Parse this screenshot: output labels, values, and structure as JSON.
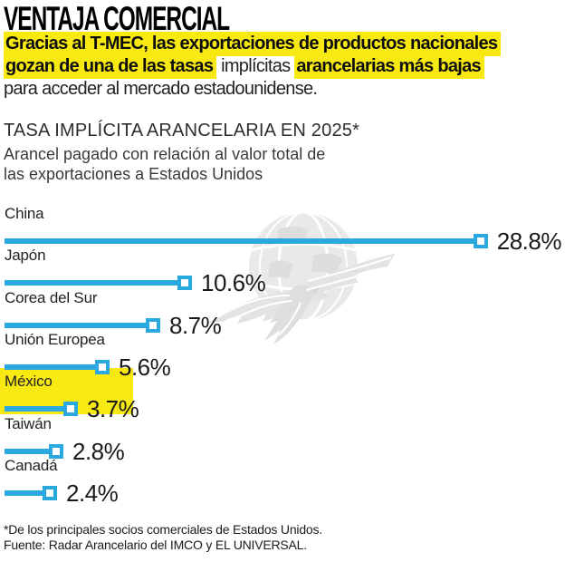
{
  "header": {
    "title": "VENTAJA COMERCIAL",
    "intro": {
      "seg1": "Gracias al T-MEC, las exportaciones de productos nacionales",
      "seg2": "gozan de una de las tasas",
      "seg3": " implícitas ",
      "seg4": "arancelarias más bajas",
      "seg5": "para acceder al mercado estadounidense."
    }
  },
  "chart": {
    "title": "TASA IMPLÍCITA ARANCELARIA EN 2025*",
    "subtitle_line1": "Arancel pagado con relación al valor total de",
    "subtitle_line2": "las exportaciones a Estados Unidos"
  },
  "chart_data": {
    "type": "bar",
    "orientation": "horizontal",
    "title": "TASA IMPLÍCITA ARANCELARIA EN 2025*",
    "subtitle": "Arancel pagado con relación al valor total de las exportaciones a Estados Unidos",
    "categories": [
      "China",
      "Japón",
      "Corea del Sur",
      "Unión Europea",
      "México",
      "Taiwán",
      "Canadá"
    ],
    "values": [
      28.8,
      10.6,
      8.7,
      5.6,
      3.7,
      2.8,
      2.4
    ],
    "value_labels": [
      "28.8%",
      "10.6%",
      "8.7%",
      "5.6%",
      "3.7%",
      "2.8%",
      "2.4%"
    ],
    "unit": "%",
    "xlim": [
      0,
      28.8
    ],
    "highlighted_category": "México",
    "grid": false,
    "legend": false
  },
  "watermark": {
    "name": "el-universal-eagle-globe"
  },
  "footer": {
    "footnote": "*De los principales socios comerciales de Estados Unidos.",
    "source": "Fuente: Radar Arancelario del IMCO y EL UNIVERSAL."
  },
  "colors": {
    "bar": "#29a9e0",
    "highlight": "#f7e911",
    "watermark": "#e6e6e6"
  }
}
